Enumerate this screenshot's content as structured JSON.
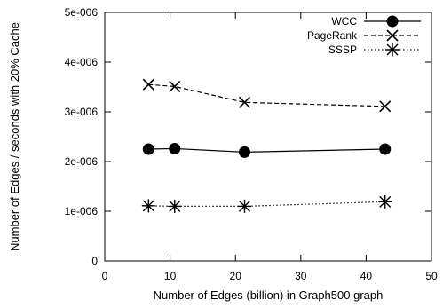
{
  "chart_data": {
    "type": "line",
    "title": "",
    "xlabel": "Number of Edges (billion) in Graph500 graph",
    "ylabel": "Number of Edges / seconds with 20% Cache",
    "xlim": [
      0,
      50
    ],
    "ylim": [
      0,
      5e-06
    ],
    "x_ticks": [
      "0",
      "10",
      "20",
      "30",
      "40",
      "50"
    ],
    "y_ticks": [
      "0",
      "1e-006",
      "2e-006",
      "3e-006",
      "4e-006",
      "5e-006"
    ],
    "grid": false,
    "legend_position": "top-right",
    "series": [
      {
        "name": "WCC",
        "line_style": "solid",
        "marker": "filled-circle",
        "points": [
          {
            "x": 6.7,
            "y": 2.25e-06
          },
          {
            "x": 10.7,
            "y": 2.26e-06
          },
          {
            "x": 21.4,
            "y": 2.19e-06
          },
          {
            "x": 42.9,
            "y": 2.25e-06
          }
        ]
      },
      {
        "name": "PageRank",
        "line_style": "dashed",
        "marker": "x-cross",
        "points": [
          {
            "x": 6.7,
            "y": 3.55e-06
          },
          {
            "x": 10.7,
            "y": 3.51e-06
          },
          {
            "x": 21.4,
            "y": 3.19e-06
          },
          {
            "x": 42.9,
            "y": 3.11e-06
          }
        ]
      },
      {
        "name": "SSSP",
        "line_style": "dotted",
        "marker": "asterisk",
        "points": [
          {
            "x": 6.7,
            "y": 1.11e-06
          },
          {
            "x": 10.7,
            "y": 1.1e-06
          },
          {
            "x": 21.4,
            "y": 1.1e-06
          },
          {
            "x": 42.9,
            "y": 1.19e-06
          }
        ]
      }
    ]
  }
}
